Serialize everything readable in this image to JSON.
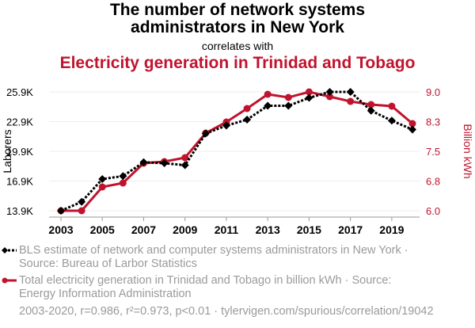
{
  "title_line1": "The number of network systems",
  "title_line2": "administrators in New York",
  "correlates": "correlates with",
  "subtitle": "Electricity generation in Trinidad and Tobago",
  "colors": {
    "series1": "#000000",
    "series2": "#c0142e",
    "grid": "#eeeeee",
    "legend_text": "#9a9a9a"
  },
  "legend": {
    "series1": "BLS estimate of network and computer systems administrators in New York · Source: Bureau of Larbor Statistics",
    "series2": "Total electricity generation in Trinidad and Tobago in billion kWh · Source: Energy Information Administration"
  },
  "footer": "2003-2020, r=0.986, r²=0.973, p<0.01 · tylervigen.com/spurious/correlation/19042",
  "chart_data": {
    "type": "line",
    "x": [
      2003,
      2004,
      2005,
      2006,
      2007,
      2008,
      2009,
      2010,
      2011,
      2012,
      2013,
      2014,
      2015,
      2016,
      2017,
      2018,
      2019,
      2020
    ],
    "x_ticks": [
      "2003",
      "2005",
      "2007",
      "2009",
      "2011",
      "2013",
      "2015",
      "2017",
      "2019"
    ],
    "ylabel_left": "Laborers",
    "ylabel_right": "Billion kWh",
    "ylim_left": [
      13900,
      25900
    ],
    "ylim_right": [
      6.0,
      9.0
    ],
    "left_ticks": [
      "13.9K",
      "16.9K",
      "19.9K",
      "22.9K",
      "25.9K"
    ],
    "right_ticks": [
      "6.0",
      "6.8",
      "7.5",
      "8.3",
      "9.0"
    ],
    "grid": true,
    "series": [
      {
        "name": "BLS estimate of network and computer systems administrators in New York",
        "axis": "left",
        "style": "dotted-diamond",
        "values": [
          13900,
          14800,
          17100,
          17400,
          18800,
          18700,
          18500,
          21700,
          22500,
          23100,
          24500,
          24500,
          25300,
          25900,
          25900,
          24000,
          23000,
          22100
        ]
      },
      {
        "name": "Total electricity generation in Trinidad and Tobago in billion kWh",
        "axis": "right",
        "style": "solid-circle",
        "values": [
          6.0,
          6.0,
          6.6,
          6.7,
          7.2,
          7.24,
          7.34,
          7.96,
          8.24,
          8.58,
          8.94,
          8.86,
          9.0,
          8.88,
          8.76,
          8.68,
          8.64,
          8.2
        ]
      }
    ]
  }
}
